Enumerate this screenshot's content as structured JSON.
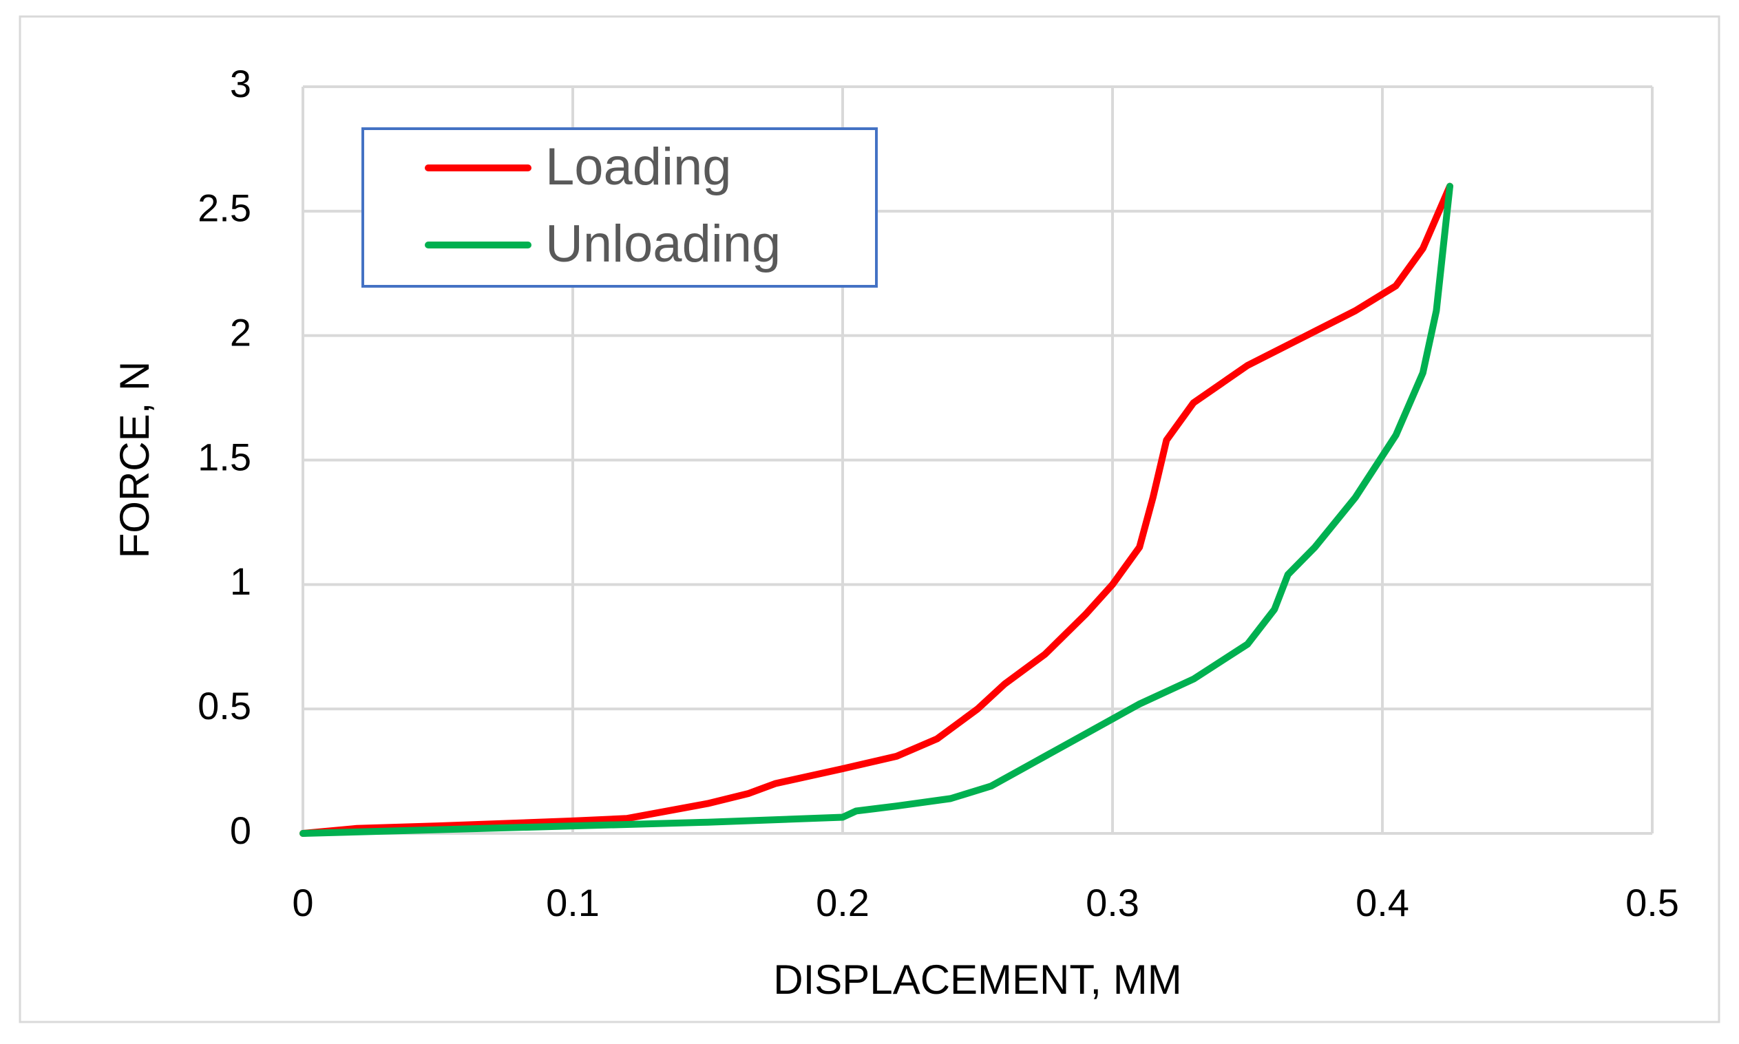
{
  "chart_data": {
    "type": "line",
    "x_label": "DISPLACEMENT, MM",
    "y_label": "FORCE, N",
    "xlim": [
      0,
      0.5
    ],
    "ylim": [
      0,
      3
    ],
    "xticks": [
      0,
      0.1,
      0.2,
      0.3,
      0.4,
      0.5
    ],
    "yticks": [
      0,
      0.5,
      1,
      1.5,
      2,
      2.5,
      3
    ],
    "grid": true,
    "legend": "top-left",
    "series": [
      {
        "name": "Loading",
        "color": "#ff0000",
        "x": [
          0,
          0.02,
          0.05,
          0.1,
          0.12,
          0.13,
          0.15,
          0.165,
          0.175,
          0.2,
          0.22,
          0.235,
          0.25,
          0.26,
          0.275,
          0.29,
          0.3,
          0.31,
          0.315,
          0.32,
          0.33,
          0.35,
          0.37,
          0.39,
          0.405,
          0.415,
          0.425
        ],
        "values": [
          0,
          0.02,
          0.03,
          0.05,
          0.06,
          0.08,
          0.12,
          0.16,
          0.2,
          0.26,
          0.31,
          0.38,
          0.5,
          0.6,
          0.72,
          0.88,
          1.0,
          1.15,
          1.35,
          1.58,
          1.73,
          1.88,
          1.99,
          2.1,
          2.2,
          2.35,
          2.6
        ]
      },
      {
        "name": "Unloading",
        "color": "#00b050",
        "x": [
          0,
          0.05,
          0.1,
          0.15,
          0.2,
          0.205,
          0.22,
          0.24,
          0.255,
          0.27,
          0.29,
          0.31,
          0.33,
          0.35,
          0.36,
          0.365,
          0.375,
          0.39,
          0.405,
          0.415,
          0.42,
          0.425
        ],
        "values": [
          0,
          0.015,
          0.03,
          0.045,
          0.065,
          0.09,
          0.11,
          0.14,
          0.19,
          0.28,
          0.4,
          0.52,
          0.62,
          0.76,
          0.9,
          1.04,
          1.15,
          1.35,
          1.6,
          1.85,
          2.1,
          2.6
        ]
      }
    ]
  }
}
